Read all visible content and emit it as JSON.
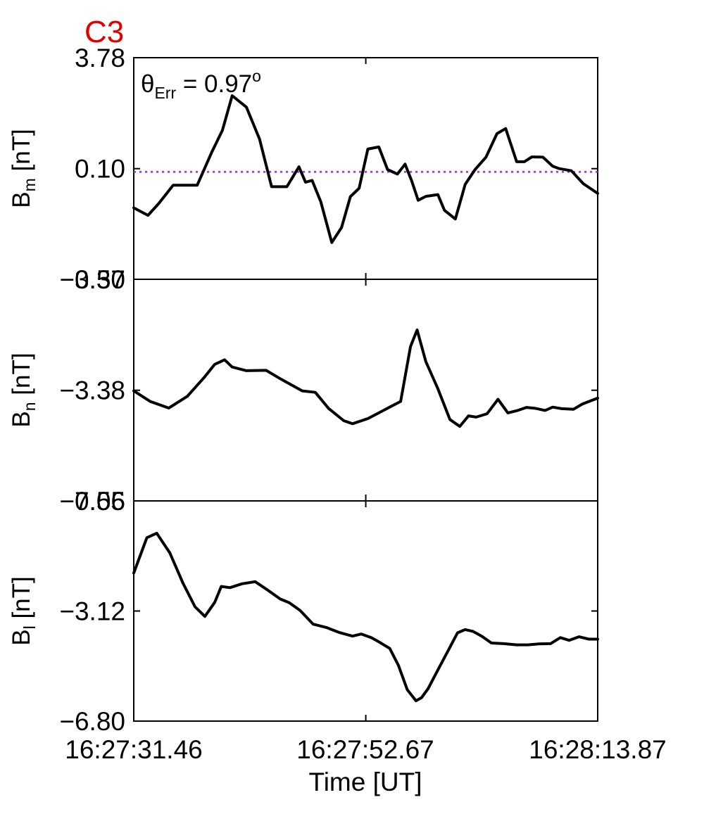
{
  "chart_data": {
    "type": "line",
    "title": "C3",
    "annotation": {
      "symbol": "θ",
      "subscript": "Err",
      "text": " =  0.97",
      "superscript": "o"
    },
    "x_tick_labels": [
      "16:27:31.46",
      "16:27:52.67",
      "16:28:13.87"
    ],
    "x_ticks_s": [
      0,
      21.21,
      42.41
    ],
    "xlabel": "Time [UT]",
    "xlim_s": [
      0,
      42.41
    ],
    "panels": [
      {
        "ylabel_main": "B",
        "ylabel_sub": "m",
        "ylabel_unit": " [nT]",
        "ylim": [
          -3.57,
          3.78
        ],
        "yticks": [
          3.78,
          0.1,
          -3.57
        ],
        "ytick_labels": [
          "3.78",
          "0.10",
          "−3.57"
        ],
        "color": "#000000",
        "reference_line": {
          "value": -0.01,
          "color": "#9d2fd6",
          "style": "dotted"
        },
        "series": [
          {
            "x": [
              0,
              1.3,
              2.3,
              3.6,
              4.5,
              5.8,
              7.1,
              8.1,
              9.0,
              10.3,
              11.5,
              12.6,
              14.0,
              15.1,
              15.7,
              16.3,
              17.1,
              18.1,
              19.0,
              19.8,
              20.6,
              21.4,
              22.4,
              23.2,
              24.1,
              24.8,
              25.4,
              26.0,
              26.7,
              27.8,
              28.4,
              29.4,
              30.3,
              31.2,
              32.2,
              33.2,
              34.0,
              35.0,
              35.7,
              36.4,
              37.4,
              38.3,
              38.9,
              40.0,
              41.1,
              42.41
            ],
            "y": [
              -1.2,
              -1.45,
              -1.05,
              -0.45,
              -0.45,
              -0.45,
              0.62,
              1.37,
              2.52,
              2.14,
              1.08,
              -0.5,
              -0.5,
              0.16,
              -0.35,
              -0.29,
              -1.0,
              -2.35,
              -1.85,
              -0.83,
              -0.55,
              0.75,
              0.82,
              0.07,
              -0.08,
              0.25,
              -0.3,
              -0.95,
              -0.82,
              -0.76,
              -1.28,
              -1.57,
              -0.42,
              0.07,
              0.48,
              1.26,
              1.43,
              0.33,
              0.33,
              0.49,
              0.48,
              0.18,
              0.1,
              0.03,
              -0.4,
              -0.72
            ]
          }
        ]
      },
      {
        "ylabel_main": "B",
        "ylabel_sub": "n",
        "ylabel_unit": " [nT]",
        "ylim": [
          -7.05,
          0.3
        ],
        "yticks": [
          0.3,
          -3.38,
          -7.05
        ],
        "ytick_labels": [
          "0.30",
          "−3.38",
          "−7.05"
        ],
        "color": "#000000",
        "series": [
          {
            "x": [
              0,
              1.5,
              3.2,
              4.9,
              6.5,
              7.4,
              8.3,
              9.0,
              10.3,
              12.1,
              13.5,
              15.4,
              16.6,
              17.8,
              19.2,
              20.0,
              21.4,
              22.4,
              23.6,
              24.4,
              25.3,
              25.9,
              26.7,
              27.8,
              28.9,
              29.8,
              30.6,
              31.3,
              32.3,
              33.3,
              34.2,
              35.1,
              35.9,
              36.7,
              37.6,
              38.3,
              39.1,
              40.2,
              41.0,
              42.41
            ],
            "y": [
              -3.4,
              -3.75,
              -3.97,
              -3.58,
              -2.93,
              -2.52,
              -2.37,
              -2.61,
              -2.73,
              -2.72,
              -3.02,
              -3.4,
              -3.45,
              -3.98,
              -4.39,
              -4.49,
              -4.32,
              -4.13,
              -3.9,
              -3.75,
              -1.93,
              -1.38,
              -2.43,
              -3.33,
              -4.35,
              -4.58,
              -4.23,
              -4.27,
              -4.16,
              -3.68,
              -4.13,
              -4.05,
              -3.95,
              -3.98,
              -4.05,
              -3.94,
              -3.99,
              -4.01,
              -3.84,
              -3.64
            ]
          }
        ]
      },
      {
        "ylabel_main": "B",
        "ylabel_sub": "l",
        "ylabel_unit": " [nT]",
        "ylim": [
          -6.8,
          0.56
        ],
        "yticks": [
          0.56,
          -3.12,
          -6.8
        ],
        "ytick_labels": [
          "0.56",
          "−3.12",
          "−6.80"
        ],
        "color": "#000000",
        "series": [
          {
            "x": [
              0,
              1.2,
              2.1,
              3.3,
              4.5,
              5.6,
              6.5,
              7.4,
              8.0,
              8.8,
              9.9,
              11.1,
              12.2,
              13.4,
              14.2,
              15.2,
              16.4,
              17.6,
              18.8,
              20.0,
              20.8,
              21.7,
              22.4,
              23.4,
              24.2,
              25.0,
              25.8,
              26.3,
              26.9,
              27.8,
              28.7,
              29.6,
              30.3,
              31.0,
              31.8,
              32.7,
              33.8,
              35.0,
              36.0,
              37.0,
              38.1,
              39.0,
              39.8,
              40.7,
              41.6,
              42.41
            ],
            "y": [
              -1.85,
              -0.67,
              -0.52,
              -1.18,
              -2.19,
              -2.98,
              -3.3,
              -2.83,
              -2.3,
              -2.34,
              -2.21,
              -2.14,
              -2.41,
              -2.72,
              -2.84,
              -3.1,
              -3.56,
              -3.67,
              -3.84,
              -3.96,
              -3.89,
              -4.01,
              -4.15,
              -4.37,
              -4.94,
              -5.75,
              -6.12,
              -6.02,
              -5.72,
              -5.09,
              -4.47,
              -3.85,
              -3.74,
              -3.8,
              -3.96,
              -4.19,
              -4.21,
              -4.25,
              -4.25,
              -4.22,
              -4.21,
              -4.01,
              -4.1,
              -3.98,
              -4.06,
              -4.06
            ]
          }
        ]
      }
    ]
  }
}
